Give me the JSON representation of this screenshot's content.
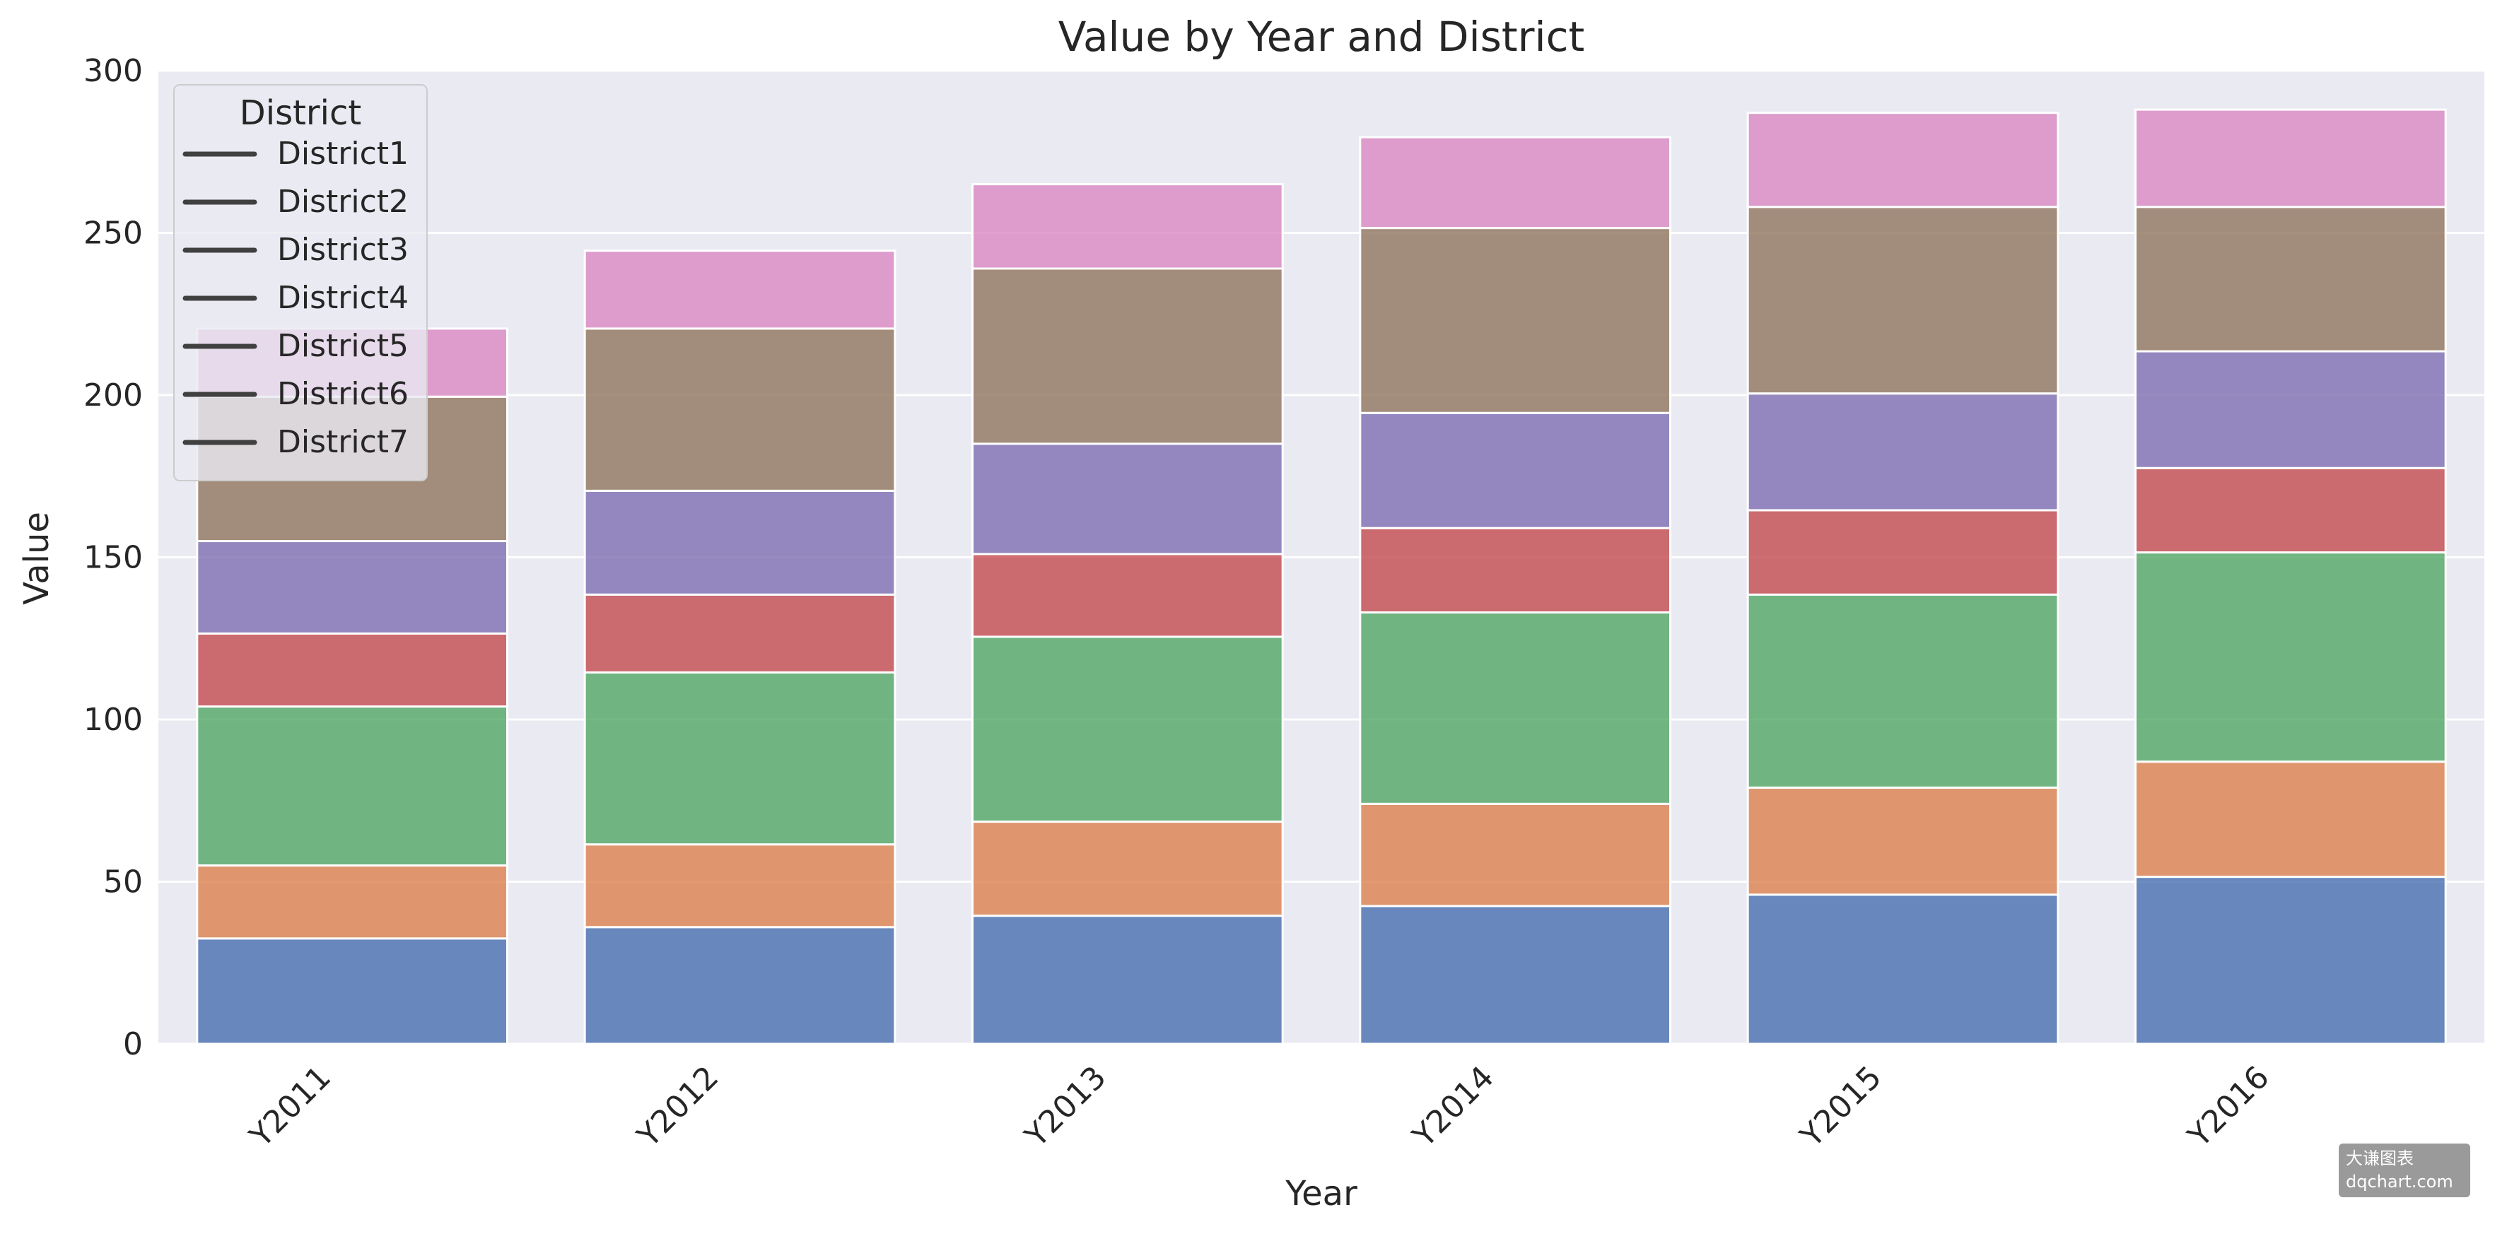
{
  "chart_data": {
    "type": "bar",
    "stacked": true,
    "title": "Value by Year and District",
    "xlabel": "Year",
    "ylabel": "Value",
    "ylim": [
      0,
      300
    ],
    "yticks": [
      0,
      50,
      100,
      150,
      200,
      250,
      300
    ],
    "categories": [
      "Y2011",
      "Y2012",
      "Y2013",
      "Y2014",
      "Y2015",
      "Y2016"
    ],
    "grid": true,
    "legend": {
      "title": "District",
      "placement": "top-left"
    },
    "series": [
      {
        "name": "District1",
        "color": "#4c72b0",
        "values": [
          32.5,
          36,
          39.5,
          42.5,
          46,
          51.5
        ]
      },
      {
        "name": "District2",
        "color": "#dd8452",
        "values": [
          22.5,
          25.5,
          29,
          31.5,
          33,
          35.5
        ]
      },
      {
        "name": "District3",
        "color": "#55a868",
        "values": [
          49,
          53,
          57,
          59,
          59.5,
          64.5
        ]
      },
      {
        "name": "District4",
        "color": "#c44e52",
        "values": [
          22.5,
          24,
          25.5,
          26,
          26,
          26
        ]
      },
      {
        "name": "District5",
        "color": "#8172b3",
        "values": [
          28.5,
          32,
          34,
          35.5,
          36,
          36
        ]
      },
      {
        "name": "District6",
        "color": "#937860",
        "values": [
          44.5,
          50,
          54,
          57,
          57.5,
          44.5
        ]
      },
      {
        "name": "District7",
        "color": "#da8bc3",
        "values": [
          21,
          24,
          26,
          28,
          29,
          30
        ]
      }
    ]
  },
  "watermark": {
    "line1": "大谦图表",
    "line2": "dqchart.com"
  }
}
